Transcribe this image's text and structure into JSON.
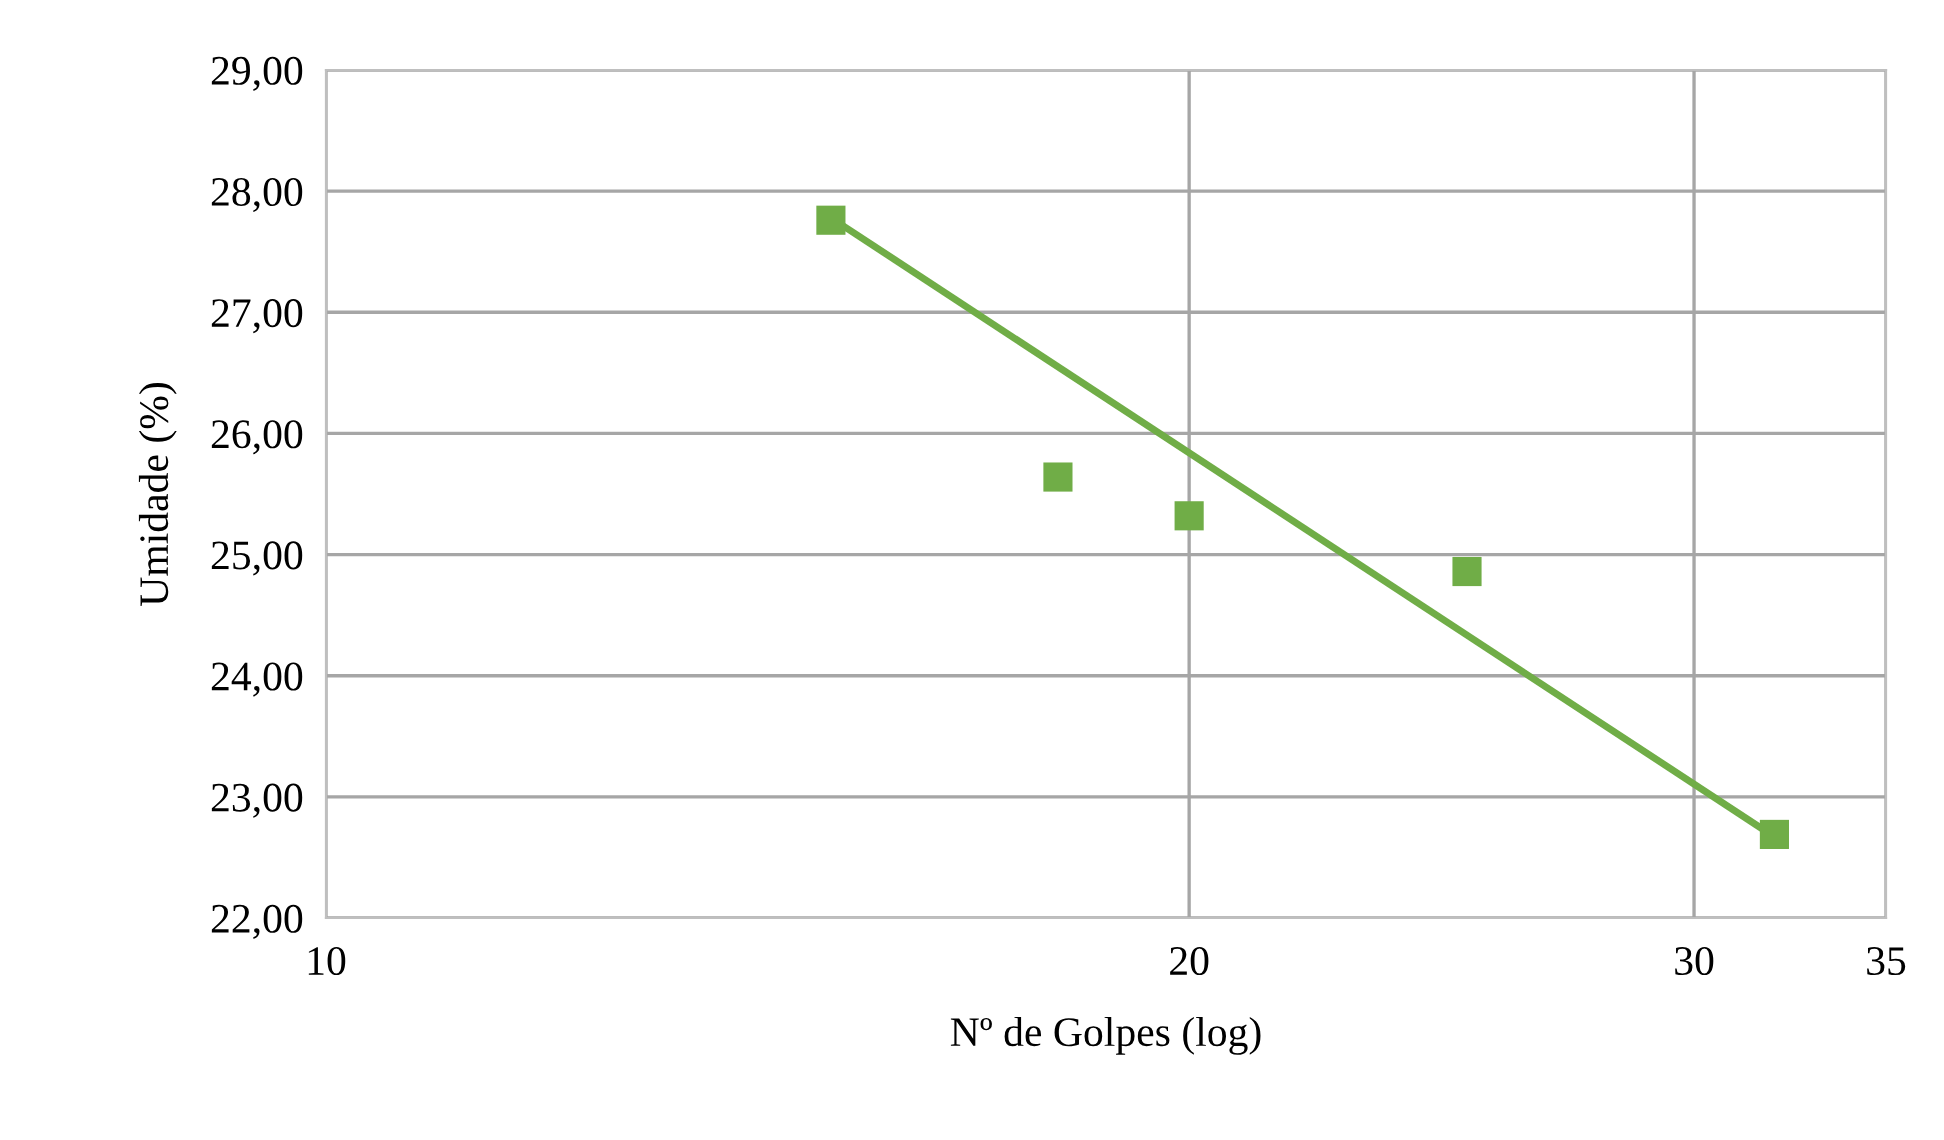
{
  "chart_data": {
    "type": "scatter",
    "xlabel": "Nº de Golpes (log)",
    "ylabel": "Umidade (%)",
    "log": "x",
    "xlim": [
      10,
      35
    ],
    "xticks": [
      10,
      20,
      30,
      35
    ],
    "ylim": [
      22,
      29
    ],
    "yticks": [
      {
        "value": 22,
        "label": "22,00"
      },
      {
        "value": 23,
        "label": "23,00"
      },
      {
        "value": 24,
        "label": "24,00"
      },
      {
        "value": 25,
        "label": "25,00"
      },
      {
        "value": 26,
        "label": "26,00"
      },
      {
        "value": 27,
        "label": "27,00"
      },
      {
        "value": 28,
        "label": "28,00"
      },
      {
        "value": 29,
        "label": "29,00"
      }
    ],
    "grid": true,
    "legend": false,
    "series": [
      {
        "color": "#70ad47",
        "marker": "square",
        "x": [
          15,
          18,
          20,
          25,
          32
        ],
        "values": [
          27.76,
          25.64,
          25.32,
          24.86,
          22.69
        ]
      },
      {
        "type": "line",
        "color": "#70ad47",
        "x": [
          15,
          32
        ],
        "values": [
          27.78,
          22.67
        ],
        "line_style": "solid"
      }
    ]
  }
}
